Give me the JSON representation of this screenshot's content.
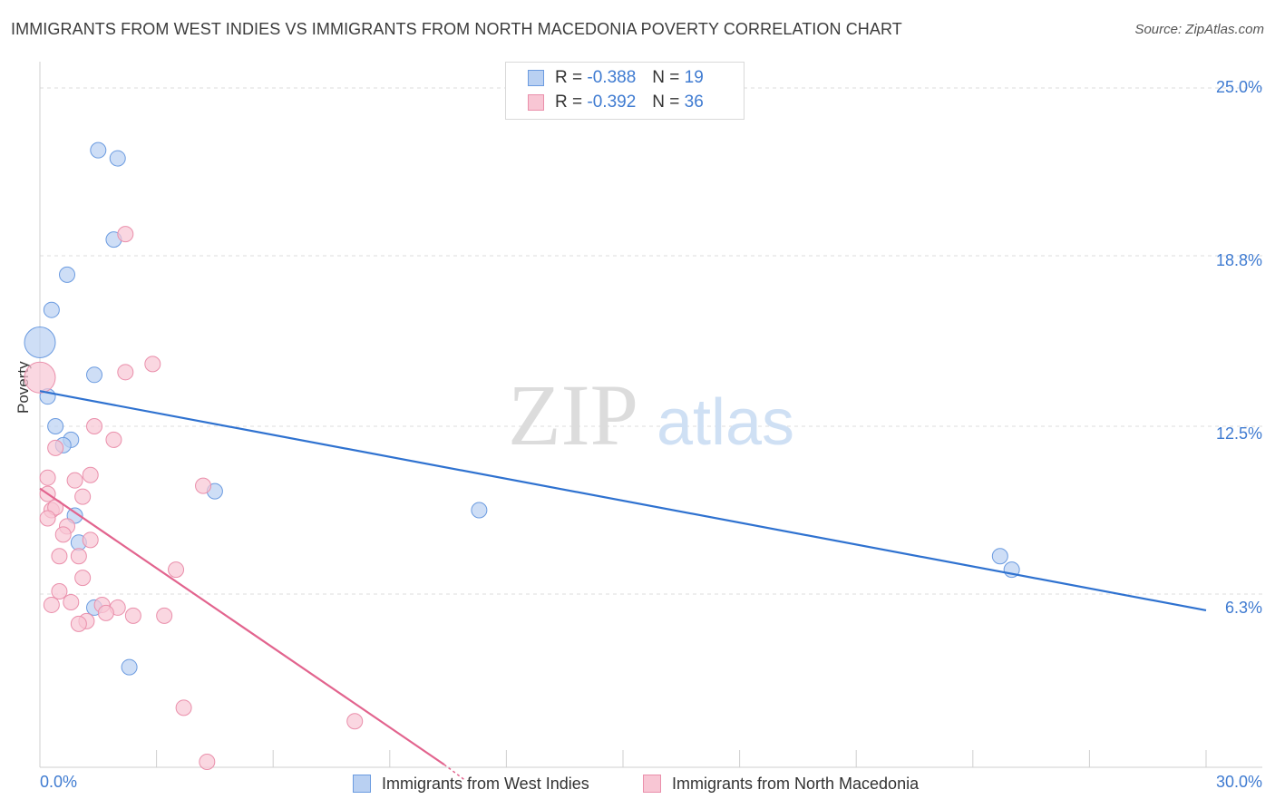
{
  "title": "IMMIGRANTS FROM WEST INDIES VS IMMIGRANTS FROM NORTH MACEDONIA POVERTY CORRELATION CHART",
  "source": "Source: ZipAtlas.com",
  "colors": {
    "blue_fill": "#b9d0f2",
    "blue_stroke": "#6b9be0",
    "blue_line": "#2f72d0",
    "pink_fill": "#f8c6d4",
    "pink_stroke": "#ea8fab",
    "pink_line": "#e2648e",
    "tick_label": "#3f7bd1"
  },
  "legend": {
    "series1": {
      "r_label": "R = ",
      "r_value": "-0.388",
      "n_label": "N = ",
      "n_value": "19"
    },
    "series2": {
      "r_label": "R = ",
      "r_value": "-0.392",
      "n_label": "N = ",
      "n_value": "36"
    }
  },
  "bottom_legend": {
    "series1": "Immigrants from West Indies",
    "series2": "Immigrants from North Macedonia"
  },
  "watermark": {
    "zip": "ZIP",
    "atlas": "atlas"
  },
  "chart_data": {
    "type": "scatter",
    "title": "IMMIGRANTS FROM WEST INDIES VS IMMIGRANTS FROM NORTH MACEDONIA POVERTY CORRELATION CHART",
    "xlabel": "",
    "ylabel": "Poverty",
    "xlim": [
      0,
      30
    ],
    "ylim": [
      0,
      25
    ],
    "x_tick_labels": [
      "0.0%",
      "30.0%"
    ],
    "y_ticks": [
      6.3,
      12.5,
      18.8,
      25.0
    ],
    "y_tick_labels": [
      "6.3%",
      "12.5%",
      "18.8%",
      "25.0%"
    ],
    "grid": true,
    "series": [
      {
        "name": "Immigrants from West Indies",
        "color": "blue",
        "points": [
          {
            "x": 1.5,
            "y": 22.7
          },
          {
            "x": 2.0,
            "y": 22.4
          },
          {
            "x": 1.9,
            "y": 19.4
          },
          {
            "x": 0.7,
            "y": 18.1
          },
          {
            "x": 0.3,
            "y": 16.8
          },
          {
            "x": 0.0,
            "y": 15.6,
            "big": true
          },
          {
            "x": 1.4,
            "y": 14.4
          },
          {
            "x": 0.2,
            "y": 13.6
          },
          {
            "x": 0.4,
            "y": 12.5
          },
          {
            "x": 0.8,
            "y": 12.0
          },
          {
            "x": 0.6,
            "y": 11.8
          },
          {
            "x": 4.5,
            "y": 10.1
          },
          {
            "x": 0.9,
            "y": 9.2
          },
          {
            "x": 1.0,
            "y": 8.2
          },
          {
            "x": 11.3,
            "y": 9.4
          },
          {
            "x": 24.7,
            "y": 7.7
          },
          {
            "x": 25.0,
            "y": 7.2
          },
          {
            "x": 1.4,
            "y": 5.8
          },
          {
            "x": 2.3,
            "y": 3.6
          }
        ],
        "trendline": {
          "x": [
            0,
            30
          ],
          "y": [
            13.8,
            5.7
          ]
        }
      },
      {
        "name": "Immigrants from North Macedonia",
        "color": "pink",
        "points": [
          {
            "x": 2.2,
            "y": 19.6
          },
          {
            "x": 0.0,
            "y": 14.3,
            "big": true
          },
          {
            "x": 2.9,
            "y": 14.8
          },
          {
            "x": 2.2,
            "y": 14.5
          },
          {
            "x": 1.4,
            "y": 12.5
          },
          {
            "x": 0.4,
            "y": 11.7
          },
          {
            "x": 1.9,
            "y": 12.0
          },
          {
            "x": 0.2,
            "y": 10.6
          },
          {
            "x": 0.9,
            "y": 10.5
          },
          {
            "x": 1.3,
            "y": 10.7
          },
          {
            "x": 4.2,
            "y": 10.3
          },
          {
            "x": 0.2,
            "y": 10.0
          },
          {
            "x": 1.1,
            "y": 9.9
          },
          {
            "x": 0.3,
            "y": 9.4
          },
          {
            "x": 0.4,
            "y": 9.5
          },
          {
            "x": 0.2,
            "y": 9.1
          },
          {
            "x": 0.7,
            "y": 8.8
          },
          {
            "x": 0.6,
            "y": 8.5
          },
          {
            "x": 1.3,
            "y": 8.3
          },
          {
            "x": 0.5,
            "y": 7.7
          },
          {
            "x": 1.0,
            "y": 7.7
          },
          {
            "x": 3.5,
            "y": 7.2
          },
          {
            "x": 1.1,
            "y": 6.9
          },
          {
            "x": 0.5,
            "y": 6.4
          },
          {
            "x": 0.8,
            "y": 6.0
          },
          {
            "x": 1.6,
            "y": 5.9
          },
          {
            "x": 2.0,
            "y": 5.8
          },
          {
            "x": 1.7,
            "y": 5.6
          },
          {
            "x": 2.4,
            "y": 5.5
          },
          {
            "x": 3.2,
            "y": 5.5
          },
          {
            "x": 1.2,
            "y": 5.3
          },
          {
            "x": 1.0,
            "y": 5.2
          },
          {
            "x": 3.7,
            "y": 2.1
          },
          {
            "x": 8.1,
            "y": 1.6
          },
          {
            "x": 4.3,
            "y": 0.1
          },
          {
            "x": 0.3,
            "y": 5.9
          }
        ],
        "trendline": {
          "x": [
            0,
            10.4
          ],
          "y": [
            10.2,
            0.0
          ]
        }
      }
    ]
  }
}
